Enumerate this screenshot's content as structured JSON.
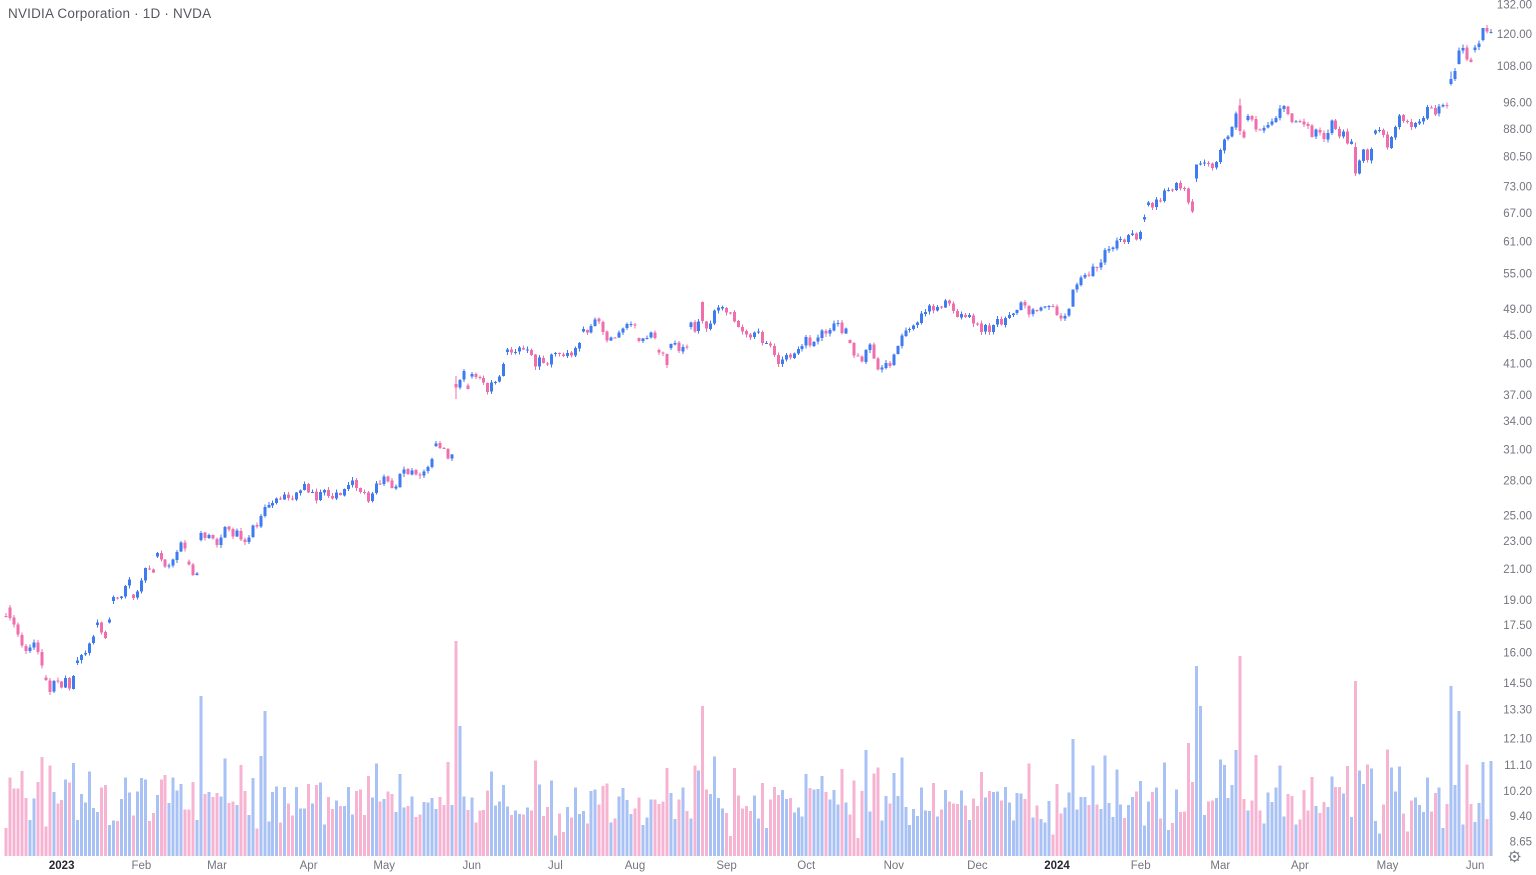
{
  "header": {
    "title": "NVIDIA Corporation · 1D · NVDA"
  },
  "colors": {
    "background": "#ffffff",
    "candle_up": "#3e7bf0",
    "candle_down": "#f06eac",
    "volume_up": "#a9c2f5",
    "volume_down": "#f7b3d2",
    "axis_text": "#73767e",
    "year_text": "#26282f",
    "title_text": "#55585f",
    "icon": "#787b86"
  },
  "price_axis": {
    "ticks": [
      132.0,
      120.0,
      108.0,
      96.0,
      88.0,
      80.5,
      73.0,
      67.0,
      61.0,
      55.0,
      49.0,
      45.0,
      41.0,
      37.0,
      34.0,
      31.0,
      28.0,
      25.0,
      23.0,
      21.0,
      19.0,
      17.5,
      16.0,
      14.5,
      13.3,
      12.1,
      11.1,
      10.2,
      9.4,
      8.65
    ]
  },
  "time_axis": {
    "labels": [
      {
        "idx": 14,
        "label": "2023",
        "bold": true
      },
      {
        "idx": 34,
        "label": "Feb"
      },
      {
        "idx": 53,
        "label": "Mar"
      },
      {
        "idx": 76,
        "label": "Apr"
      },
      {
        "idx": 95,
        "label": "May"
      },
      {
        "idx": 117,
        "label": "Jun"
      },
      {
        "idx": 138,
        "label": "Jul"
      },
      {
        "idx": 158,
        "label": "Aug"
      },
      {
        "idx": 181,
        "label": "Sep"
      },
      {
        "idx": 201,
        "label": "Oct"
      },
      {
        "idx": 223,
        "label": "Nov"
      },
      {
        "idx": 244,
        "label": "Dec"
      },
      {
        "idx": 264,
        "label": "2024",
        "bold": true
      },
      {
        "idx": 285,
        "label": "Feb"
      },
      {
        "idx": 305,
        "label": "Mar"
      },
      {
        "idx": 325,
        "label": "Apr"
      },
      {
        "idx": 347,
        "label": "May"
      },
      {
        "idx": 369,
        "label": "Jun"
      }
    ]
  },
  "chart_data": {
    "type": "candlestick",
    "title": "NVIDIA Corporation",
    "symbol": "NVDA",
    "interval": "1D",
    "price_scale": "logarithmic",
    "ylim": [
      8.65,
      132.0
    ],
    "x_start": "Dec 2022",
    "x_end": "Jun 2024",
    "grid": false,
    "panes": [
      "price-candles",
      "volume"
    ],
    "closes": [
      18.02,
      17.95,
      17.55,
      17.0,
      16.4,
      16.1,
      16.3,
      16.56,
      16.05,
      15.36,
      14.65,
      14.1,
      14.61,
      14.61,
      14.31,
      14.75,
      14.26,
      14.86,
      15.63,
      15.91,
      16.0,
      16.52,
      16.9,
      17.68,
      17.1,
      16.82,
      17.85,
      19.2,
      19.15,
      19.23,
      19.9,
      20.34,
      19.16,
      19.55,
      20.27,
      21.1,
      21.06,
      20.8,
      22.15,
      21.7,
      21.22,
      21.29,
      21.69,
      22.25,
      22.93,
      22.49,
      21.35,
      20.65,
      20.75,
      23.66,
      23.27,
      23.5,
      23.22,
      22.75,
      23.3,
      24.13,
      23.93,
      23.39,
      23.86,
      23.15,
      22.96,
      23.32,
      24.25,
      24.18,
      25.0,
      25.74,
      25.9,
      26.1,
      26.48,
      26.45,
      26.8,
      26.5,
      26.4,
      27.0,
      27.19,
      27.77,
      27.0,
      27.05,
      26.3,
      27.02,
      27.2,
      26.7,
      26.48,
      26.98,
      26.78,
      27.31,
      27.68,
      28.09,
      27.4,
      27.05,
      27.0,
      26.21,
      26.92,
      27.78,
      27.74,
      28.43,
      28.0,
      27.37,
      27.52,
      28.65,
      29.1,
      28.67,
      29.01,
      28.6,
      28.51,
      28.92,
      29.32,
      30.1,
      31.68,
      31.21,
      31.16,
      30.13,
      30.54,
      37.98,
      38.95,
      40.11,
      37.83,
      39.71,
      39.33,
      39.17,
      38.61,
      37.42,
      38.59,
      38.71,
      39.41,
      41.02,
      42.99,
      42.57,
      42.68,
      43.27,
      43.02,
      42.99,
      42.21,
      40.65,
      41.86,
      41.15,
      40.95,
      42.3,
      42.48,
      42.4,
      42.11,
      42.53,
      42.14,
      43.18,
      43.91,
      45.93,
      45.45,
      46.43,
      47.44,
      47.1,
      45.52,
      44.28,
      44.68,
      44.64,
      45.41,
      46.04,
      46.71,
      46.73,
      46.5,
      44.21,
      44.56,
      44.67,
      45.42,
      44.65,
      42.58,
      42.41,
      40.86,
      43.74,
      43.92,
      42.77,
      43.36,
      43.29,
      46.94,
      45.6,
      47.12,
      47.16,
      46.02,
      46.8,
      48.79,
      49.27,
      49.35,
      48.5,
      48.51,
      47.07,
      46.27,
      45.57,
      45.15,
      44.7,
      45.43,
      45.58,
      43.9,
      43.93,
      43.56,
      42.25,
      41.03,
      41.61,
      42.25,
      41.9,
      42.44,
      43.09,
      43.5,
      44.76,
      43.53,
      44.04,
      44.68,
      45.73,
      45.27,
      45.78,
      46.8,
      46.9,
      45.4,
      46.03,
      43.95,
      42.18,
      42.11,
      41.36,
      42.95,
      43.67,
      41.76,
      40.3,
      40.52,
      41.17,
      40.78,
      42.33,
      43.5,
      45.03,
      45.76,
      45.93,
      46.52,
      46.94,
      48.34,
      48.61,
      49.62,
      48.8,
      49.4,
      49.28,
      50.4,
      49.93,
      48.72,
      47.77,
      48.23,
      47.82,
      48.12,
      46.77,
      46.75,
      45.53,
      46.56,
      45.51,
      46.54,
      47.52,
      46.66,
      47.61,
      48.09,
      48.34,
      48.89,
      50.08,
      49.61,
      48.15,
      48.97,
      48.83,
      49.28,
      49.43,
      49.52,
      49.52,
      48.11,
      47.58,
      47.99,
      49.09,
      52.24,
      53.1,
      54.35,
      54.82,
      54.7,
      56.37,
      56.04,
      57.12,
      59.4,
      59.66,
      59.89,
      61.35,
      61.65,
      61.02,
      62.46,
      62.77,
      61.52,
      63.01,
      66.16,
      69.34,
      68.23,
      70.02,
      69.62,
      72.13,
      72.25,
      72.1,
      73.9,
      72.68,
      72.62,
      69.45,
      67.45,
      78.52,
      78.81,
      79.04,
      78.7,
      77.65,
      79.11,
      82.28,
      85.21,
      85.96,
      88.7,
      92.67,
      87.53,
      85.78,
      91.91,
      90.9,
      87.94,
      87.87,
      88.43,
      89.37,
      90.36,
      91.42,
      94.27,
      95.0,
      92.56,
      90.25,
      90.36,
      90.36,
      89.45,
      88.96,
      85.9,
      88.01,
      87.13,
      85.31,
      87.04,
      90.62,
      88.19,
      86.0,
      87.43,
      84.04,
      84.67,
      76.2,
      79.5,
      82.4,
      79.65,
      82.64,
      87.74,
      87.8,
      86.44,
      83.01,
      85.82,
      88.76,
      92.14,
      90.53,
      90.41,
      88.71,
      89.87,
      90.36,
      91.31,
      94.66,
      94.35,
      92.48,
      94.78,
      95.39,
      94.95,
      103.75,
      106.47,
      113.9,
      114.83,
      110.5,
      109.63,
      115.0,
      116.44,
      122.44,
      120.99,
      120.89
    ],
    "ohl_overrides": {
      "1": {
        "o": 18.55,
        "h": 18.72,
        "l": 17.78
      },
      "113": {
        "o": 38.46,
        "h": 39.47,
        "l": 36.57
      },
      "175": {
        "o": 50.2,
        "h": 50.27,
        "l": 46.8
      },
      "268": {
        "o": 49.47,
        "h": 52.28,
        "l": 49.4
      },
      "299": {
        "o": 75.02,
        "h": 78.58,
        "l": 74.21
      },
      "310": {
        "o": 95.1,
        "h": 97.38,
        "l": 86.5
      },
      "339": {
        "o": 83.1,
        "h": 84.3,
        "l": 75.61
      },
      "363": {
        "o": 102.0,
        "h": 106.32,
        "l": 101.52
      },
      "365": {
        "o": 109.0,
        "h": 114.94,
        "l": 108.8
      },
      "371": {
        "o": 117.8,
        "h": 122.45,
        "l": 117.3
      }
    },
    "volume_overrides": {
      "49": 160,
      "64": 100,
      "65": 145,
      "113": 215,
      "114": 130,
      "175": 150,
      "299": 190,
      "300": 150,
      "310": 200,
      "339": 175,
      "363": 170,
      "365": 145,
      "373": 95
    }
  }
}
